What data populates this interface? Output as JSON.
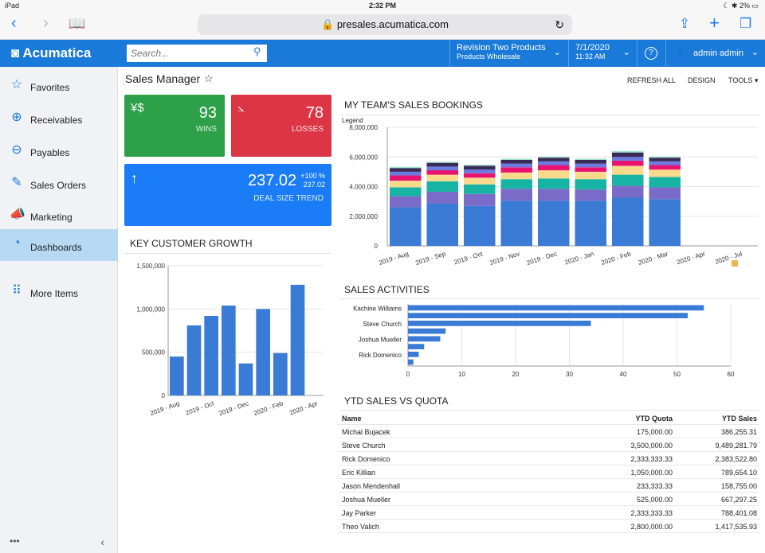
{
  "status": {
    "device": "iPad",
    "time": "2:32 PM",
    "battery": "2%"
  },
  "browser": {
    "url": "presales.acumatica.com"
  },
  "app": {
    "logo": "Acumatica",
    "search_placeholder": "Search...",
    "company": "Revision Two Products",
    "branch": "Products Wholesale",
    "date": "7/1/2020",
    "time": "11:32 AM",
    "help": "?",
    "user": "admin admin"
  },
  "sidebar": {
    "items": [
      {
        "label": "Favorites",
        "icon": "star-icon"
      },
      {
        "label": "Receivables",
        "icon": "plus-circle-icon"
      },
      {
        "label": "Payables",
        "icon": "minus-circle-icon"
      },
      {
        "label": "Sales Orders",
        "icon": "edit-icon"
      },
      {
        "label": "Marketing",
        "icon": "megaphone-icon"
      },
      {
        "label": "Dashboards",
        "icon": "gauge-icon"
      },
      {
        "label": "More Items",
        "icon": "grid-icon"
      }
    ],
    "bottom": "•••"
  },
  "page": {
    "title": "Sales Manager",
    "refresh": "REFRESH ALL",
    "design": "DESIGN",
    "tools": "TOOLS ▾"
  },
  "tiles": {
    "wins": {
      "value": "93",
      "label": "WINS",
      "color": "#2ea04a"
    },
    "losses": {
      "value": "78",
      "label": "LOSSES",
      "color": "#dc3545"
    },
    "deal": {
      "value": "237.02",
      "pct": "+100 %",
      "sub": "237.02",
      "label": "DEAL SIZE TREND",
      "color": "#1a7cf6"
    }
  },
  "sections": {
    "key_customer": "KEY CUSTOMER GROWTH",
    "bookings": "MY TEAM'S SALES BOOKINGS",
    "activities": "SALES ACTIVITIES",
    "ytd": "YTD SALES VS QUOTA"
  },
  "chart_data": [
    {
      "type": "bar",
      "title": "KEY CUSTOMER GROWTH",
      "categories": [
        "2019 - Aug",
        "2019 - Sep",
        "2019 - Oct",
        "2019 - Nov",
        "2019 - Dec",
        "2020 - Jan",
        "2020 - Feb",
        "2020 - Mar",
        "2020 - Apr"
      ],
      "tick_labels": [
        "2019 - Aug",
        "2019 - Oct",
        "2019 - Dec",
        "2020 - Feb",
        "2020 - Apr"
      ],
      "values": [
        450000,
        810000,
        920000,
        1040000,
        370000,
        1000000,
        490000,
        1280000,
        0
      ],
      "yticks": [
        "0",
        "500,000",
        "1,000,000",
        "1,500,000"
      ],
      "ylim": [
        0,
        1500000
      ],
      "color": "#3a7bd5"
    },
    {
      "type": "bar",
      "stacked": true,
      "title": "MY TEAM'S SALES BOOKINGS",
      "legend_label": "Legend",
      "categories": [
        "2019 - Aug",
        "2019 - Sep",
        "2019 - Oct",
        "2019 - Nov",
        "2019 - Dec",
        "2020 - Jan",
        "2020 - Feb",
        "2020 - Mar",
        "2020 - Apr",
        "2020 - Jul"
      ],
      "series": [
        {
          "color": "#3a7bd5",
          "values": [
            2600000,
            2850000,
            2700000,
            3050000,
            3050000,
            3050000,
            3250000,
            3150000,
            0,
            0
          ]
        },
        {
          "color": "#7b6bc9",
          "values": [
            750000,
            800000,
            800000,
            800000,
            800000,
            750000,
            800000,
            800000,
            0,
            0
          ]
        },
        {
          "color": "#17b3a3",
          "values": [
            600000,
            700000,
            650000,
            650000,
            700000,
            700000,
            750000,
            700000,
            0,
            0
          ]
        },
        {
          "color": "#f9d98c",
          "values": [
            450000,
            450000,
            450000,
            450000,
            550000,
            500000,
            600000,
            500000,
            0,
            0
          ]
        },
        {
          "color": "#e8136f",
          "values": [
            350000,
            300000,
            300000,
            350000,
            350000,
            300000,
            350000,
            300000,
            0,
            0
          ]
        },
        {
          "color": "#6b7be0",
          "values": [
            250000,
            250000,
            250000,
            250000,
            250000,
            250000,
            250000,
            250000,
            0,
            0
          ]
        },
        {
          "color": "#3a2b56",
          "values": [
            250000,
            250000,
            250000,
            250000,
            250000,
            250000,
            300000,
            250000,
            0,
            0
          ]
        },
        {
          "color": "#9de0c8",
          "values": [
            80000,
            80000,
            80000,
            80000,
            80000,
            80000,
            100000,
            80000,
            0,
            0
          ]
        }
      ],
      "yticks": [
        "0",
        "2,000,000",
        "4,000,000",
        "6,000,000",
        "8,000,000"
      ],
      "ylim": [
        0,
        8000000
      ]
    },
    {
      "type": "bar",
      "orientation": "horizontal",
      "title": "SALES ACTIVITIES",
      "categories": [
        "Kachine Williams",
        "",
        "Steve Church",
        "",
        "Joshua Mueller",
        "",
        "Rick Domenico",
        ""
      ],
      "values": [
        55,
        52,
        34,
        7,
        6,
        3,
        2,
        1
      ],
      "xticks": [
        "0",
        "10",
        "20",
        "30",
        "40",
        "50",
        "60"
      ],
      "xlim": [
        0,
        60
      ],
      "color": "#3a7bd5"
    }
  ],
  "ytd_table": {
    "headers": [
      "Name",
      "YTD Quota",
      "YTD Sales"
    ],
    "rows": [
      [
        "Michal Bujacek",
        "175,000.00",
        "386,255.31"
      ],
      [
        "Steve Church",
        "3,500,000.00",
        "9,489,281.79"
      ],
      [
        "Rick Domenico",
        "2,333,333.33",
        "2,383,522.80"
      ],
      [
        "Eric Killian",
        "1,050,000.00",
        "789,654.10"
      ],
      [
        "Jason Mendenhall",
        "233,333.33",
        "158,755.00"
      ],
      [
        "Joshua Mueller",
        "525,000.00",
        "667,297.25"
      ],
      [
        "Jay Parker",
        "2,333,333.33",
        "788,401.08"
      ],
      [
        "Theo Valich",
        "2,800,000.00",
        "1,417,535.93"
      ]
    ]
  }
}
